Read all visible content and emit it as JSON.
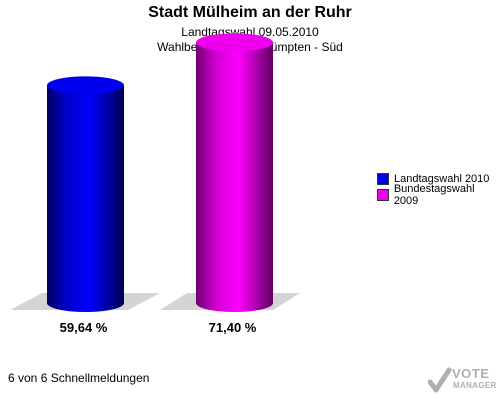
{
  "header": {
    "title": "Stadt Mülheim an der Ruhr",
    "subtitle": "Landtagswahl 09.05.2010",
    "subtitle2": "Wahlbeteiligung 13 Dümpten - Süd"
  },
  "footer": {
    "text": "6 von 6 Schnellmeldungen"
  },
  "logo": {
    "line1": "VOTE",
    "line2": "MANAGER"
  },
  "colors": {
    "series1": "#0000ee",
    "series2": "#ee00ee",
    "shadow": "#d4d4d4"
  },
  "chart_data": {
    "type": "bar",
    "title": "Stadt Mülheim an der Ruhr",
    "subtitle": "Landtagswahl 09.05.2010 / Wahlbeteiligung 13 Dümpten - Süd",
    "categories": [
      "Landtagswahl 2010",
      "Bundestagswahl 2009"
    ],
    "values": [
      59.64,
      71.4
    ],
    "value_labels": [
      "59,64 %",
      "71,40 %"
    ],
    "unit": "%",
    "ylim": [
      0,
      80
    ],
    "legend": {
      "position": "right",
      "entries": [
        "Landtagswahl 2010",
        "Bundestagswahl 2009"
      ]
    },
    "grid": false
  }
}
